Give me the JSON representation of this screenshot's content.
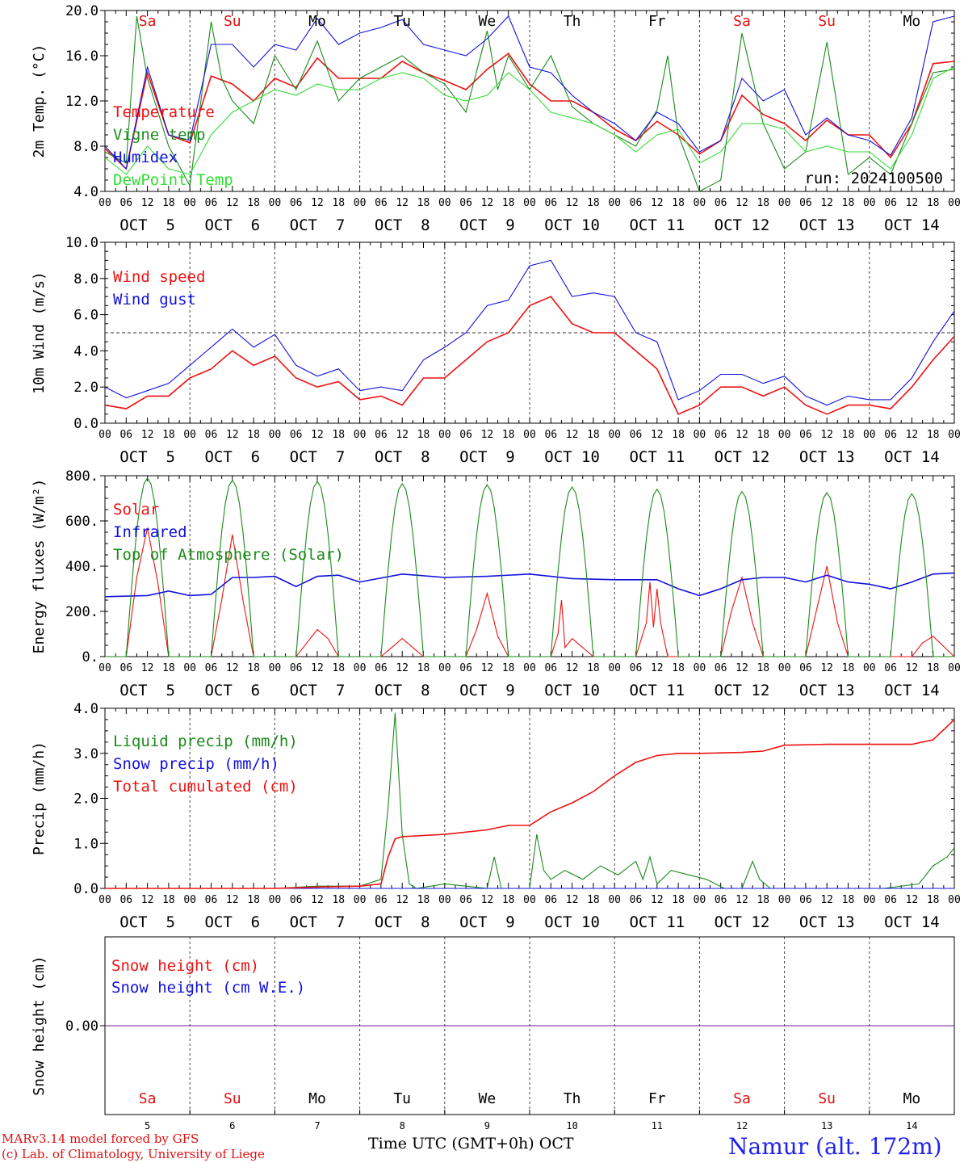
{
  "day_names": [
    "Sa",
    "Su",
    "Mo",
    "Tu",
    "We",
    "Th",
    "Fr",
    "Sa",
    "Su",
    "Mo"
  ],
  "weekend_color": "#e01010",
  "weekday_color": "#000000",
  "hour_ticks": [
    "00",
    "06",
    "12",
    "18"
  ],
  "end_tick": "00",
  "date_labels": [
    "OCT  5",
    "OCT  6",
    "OCT  7",
    "OCT  8",
    "OCT  9",
    "OCT 10",
    "OCT 11",
    "OCT 12",
    "OCT 13",
    "OCT 14"
  ],
  "day_numbers": [
    "5",
    "6",
    "7",
    "8",
    "9",
    "10",
    "11",
    "12",
    "13",
    "14"
  ],
  "run_label": "run: 2024100500",
  "footer": {
    "model_line": "MARv3.14 model forced by GFS",
    "copyright_line": "(c) Lab. of Climatology, University of Liege",
    "axis_title": "Time UTC (GMT+0h)",
    "axis_month": "OCT",
    "station": "Namur (alt. 172m)"
  },
  "chart_data": [
    {
      "type": "line",
      "ylabel": "2m Temp. (°C)",
      "ylim": [
        4,
        20
      ],
      "yticks": [
        "4.0",
        "8.0",
        "12.0",
        "16.0",
        "20.0"
      ],
      "x_unit": "hours since Oct 5 00 UTC",
      "series": [
        {
          "name": "Temperature",
          "color": "#ee1111",
          "x": [
            0,
            6,
            12,
            18,
            24,
            30,
            36,
            42,
            48,
            54,
            60,
            66,
            72,
            78,
            84,
            90,
            96,
            102,
            108,
            114,
            120,
            126,
            132,
            138,
            144,
            150,
            156,
            162,
            168,
            174,
            180,
            186,
            192,
            198,
            204,
            210,
            216,
            222,
            228,
            234,
            240
          ],
          "y": [
            7.8,
            6,
            14.5,
            9,
            8.3,
            14.2,
            13.5,
            12,
            14,
            13.2,
            15.8,
            14,
            14,
            14,
            15.5,
            14.5,
            13.8,
            13,
            14.8,
            16.2,
            13.5,
            12,
            12,
            11,
            9.5,
            8.5,
            10.2,
            9,
            7.3,
            8.5,
            12.5,
            10.8,
            10,
            8.5,
            10.3,
            9,
            9,
            7,
            10,
            15.3,
            15.5
          ]
        },
        {
          "name": "Vigne temp",
          "color": "#1a8a1a",
          "x": [
            0,
            6,
            9,
            12,
            18,
            24,
            30,
            33,
            36,
            42,
            48,
            54,
            60,
            66,
            72,
            78,
            84,
            90,
            96,
            102,
            108,
            111,
            114,
            120,
            126,
            132,
            138,
            144,
            150,
            156,
            159,
            162,
            168,
            174,
            180,
            186,
            192,
            198,
            204,
            210,
            216,
            222,
            228,
            234,
            240
          ],
          "y": [
            7.5,
            6.5,
            19.5,
            14,
            8,
            4.5,
            19,
            14,
            12,
            10,
            16,
            13,
            17.3,
            12,
            14,
            15,
            16,
            14.5,
            13.5,
            11,
            18.2,
            13,
            16,
            13,
            16,
            11.5,
            10,
            9,
            8,
            11.2,
            16,
            9,
            4,
            5,
            18,
            10,
            6,
            7.5,
            17.2,
            5.5,
            7,
            5.5,
            10,
            14.5,
            14.8
          ]
        },
        {
          "name": "Humidex",
          "color": "#1111dd",
          "x": [
            0,
            6,
            12,
            18,
            24,
            30,
            36,
            42,
            48,
            54,
            60,
            66,
            72,
            78,
            84,
            90,
            96,
            102,
            108,
            114,
            120,
            126,
            132,
            138,
            144,
            150,
            156,
            162,
            168,
            174,
            180,
            186,
            192,
            198,
            204,
            210,
            216,
            222,
            228,
            234,
            240
          ],
          "y": [
            8,
            6,
            15,
            9,
            8.5,
            17,
            17,
            15,
            17,
            16.5,
            19.3,
            17,
            18,
            18.5,
            19.2,
            17,
            16.5,
            16,
            17.5,
            19.5,
            15,
            14.5,
            12.5,
            11,
            10,
            8.5,
            11,
            10,
            7.5,
            8.5,
            14,
            12,
            13,
            9,
            10.5,
            9,
            8.5,
            7.2,
            10.5,
            19,
            19.5
          ]
        },
        {
          "name": "DewPoint Temp",
          "color": "#33dd33",
          "x": [
            0,
            6,
            12,
            18,
            24,
            30,
            36,
            42,
            48,
            54,
            60,
            66,
            72,
            78,
            84,
            90,
            96,
            102,
            108,
            114,
            120,
            126,
            132,
            138,
            144,
            150,
            156,
            162,
            168,
            174,
            180,
            186,
            192,
            198,
            204,
            210,
            216,
            222,
            228,
            234,
            240
          ],
          "y": [
            7,
            5.5,
            8,
            6,
            5.5,
            9,
            11,
            12,
            13,
            12.5,
            13.5,
            13,
            13,
            14,
            14.5,
            14,
            12.5,
            12,
            12.5,
            14.5,
            13,
            11,
            10.5,
            10,
            9,
            7.5,
            9,
            9.5,
            6.5,
            7.5,
            10,
            10,
            9.5,
            7.5,
            8,
            7.5,
            7.5,
            6,
            9,
            14,
            15
          ]
        }
      ]
    },
    {
      "type": "line",
      "ylabel": "10m Wind (m/s)",
      "ylim": [
        0,
        10
      ],
      "yticks": [
        "0.0",
        "2.0",
        "4.0",
        "6.0",
        "8.0",
        "10.0"
      ],
      "reference_line": 5,
      "series": [
        {
          "name": "Wind speed",
          "color": "#ee1111",
          "x": [
            0,
            6,
            12,
            18,
            24,
            30,
            36,
            42,
            48,
            54,
            60,
            66,
            72,
            78,
            84,
            90,
            96,
            102,
            108,
            114,
            120,
            126,
            132,
            138,
            144,
            150,
            156,
            162,
            168,
            174,
            180,
            186,
            192,
            198,
            204,
            210,
            216,
            222,
            228,
            234,
            240
          ],
          "y": [
            1,
            0.8,
            1.5,
            1.5,
            2.5,
            3,
            4,
            3.2,
            3.7,
            2.5,
            2,
            2.3,
            1.3,
            1.5,
            1,
            2.5,
            2.5,
            3.5,
            4.5,
            5,
            6.5,
            7,
            5.5,
            5,
            5,
            4,
            3,
            0.5,
            1,
            2,
            2,
            1.5,
            2,
            1,
            0.5,
            1,
            1,
            0.8,
            2,
            3.5,
            4.8
          ]
        },
        {
          "name": "Wind gust",
          "color": "#1111dd",
          "x": [
            0,
            6,
            12,
            18,
            24,
            30,
            36,
            42,
            48,
            54,
            60,
            66,
            72,
            78,
            84,
            90,
            96,
            102,
            108,
            114,
            120,
            126,
            132,
            138,
            144,
            150,
            156,
            162,
            168,
            174,
            180,
            186,
            192,
            198,
            204,
            210,
            216,
            222,
            228,
            234,
            240
          ],
          "y": [
            2,
            1.4,
            1.8,
            2.2,
            3.2,
            4.2,
            5.2,
            4.2,
            4.9,
            3.2,
            2.6,
            3,
            1.8,
            2,
            1.8,
            3.5,
            4.2,
            5,
            6.5,
            6.8,
            8.7,
            9,
            7,
            7.2,
            7,
            5,
            4.5,
            1.3,
            1.8,
            2.7,
            2.7,
            2.2,
            2.6,
            1.5,
            1,
            1.5,
            1.3,
            1.3,
            2.5,
            4.5,
            6.2
          ]
        }
      ]
    },
    {
      "type": "line",
      "ylabel": "Energy fluxes (W/m²)",
      "ylim": [
        0,
        800
      ],
      "yticks": [
        "0.",
        "200.",
        "400.",
        "600.",
        "800."
      ],
      "series": [
        {
          "name": "Solar",
          "color": "#ee1111",
          "x": [
            0,
            6,
            9,
            12,
            15,
            18,
            24,
            30,
            33,
            36,
            39,
            42,
            48,
            54,
            57,
            60,
            63,
            66,
            72,
            78,
            81,
            84,
            87,
            90,
            96,
            102,
            105,
            108,
            111,
            114,
            120,
            126,
            128,
            129,
            130,
            132,
            138,
            150,
            153,
            154,
            155,
            156,
            157,
            159,
            168,
            174,
            177,
            180,
            183,
            186,
            192,
            198,
            201,
            204,
            207,
            210,
            216,
            222,
            228,
            231,
            234,
            240
          ],
          "y": [
            0,
            0,
            350,
            570,
            320,
            0,
            0,
            0,
            250,
            540,
            250,
            0,
            0,
            0,
            60,
            120,
            80,
            0,
            0,
            0,
            40,
            80,
            40,
            0,
            0,
            0,
            120,
            280,
            90,
            0,
            0,
            0,
            100,
            250,
            40,
            80,
            0,
            0,
            150,
            330,
            130,
            300,
            150,
            0,
            0,
            0,
            200,
            350,
            150,
            0,
            0,
            0,
            200,
            400,
            150,
            0,
            0,
            0,
            0,
            60,
            90,
            0
          ]
        },
        {
          "name": "Infrared",
          "color": "#1111dd",
          "x": [
            0,
            12,
            18,
            24,
            30,
            36,
            42,
            48,
            54,
            60,
            66,
            72,
            84,
            96,
            108,
            120,
            132,
            144,
            156,
            162,
            168,
            174,
            180,
            186,
            192,
            198,
            204,
            210,
            216,
            222,
            228,
            234,
            240
          ],
          "y": [
            265,
            270,
            290,
            270,
            275,
            350,
            350,
            355,
            310,
            355,
            360,
            330,
            365,
            350,
            355,
            365,
            345,
            340,
            340,
            300,
            270,
            300,
            340,
            350,
            350,
            330,
            360,
            330,
            320,
            300,
            330,
            365,
            370
          ]
        },
        {
          "name": "Top of Atmosphere (Solar)",
          "color": "#1a8a1a",
          "peaks": [
            790,
            780,
            775,
            765,
            760,
            750,
            740,
            730,
            725,
            720
          ]
        }
      ]
    },
    {
      "type": "line",
      "ylabel": "Precip (mm/h)",
      "ylim": [
        0,
        4
      ],
      "yticks": [
        "0.0",
        "1.0",
        "2.0",
        "3.0",
        "4.0"
      ],
      "series": [
        {
          "name": "Liquid precip (mm/h)",
          "color": "#1a8a1a",
          "x": [
            0,
            48,
            60,
            66,
            72,
            78,
            80,
            82,
            84,
            86,
            88,
            96,
            108,
            110,
            112,
            120,
            122,
            124,
            126,
            130,
            135,
            140,
            145,
            150,
            152,
            154,
            156,
            160,
            165,
            170,
            175,
            180,
            183,
            185,
            188,
            200,
            210,
            220,
            230,
            234,
            238,
            240
          ],
          "y": [
            0,
            0,
            0.05,
            0.05,
            0.05,
            0.2,
            1.8,
            3.9,
            1.2,
            0.1,
            0,
            0.1,
            0,
            0.7,
            0,
            0,
            1.2,
            0.4,
            0.2,
            0.4,
            0.2,
            0.5,
            0.3,
            0.6,
            0.2,
            0.7,
            0.1,
            0.4,
            0.3,
            0.2,
            0,
            0,
            0.6,
            0.2,
            0,
            0,
            0,
            0,
            0.1,
            0.5,
            0.7,
            0.9
          ]
        },
        {
          "name": "Snow precip (mm/h)",
          "color": "#1111dd",
          "x": [
            0,
            240
          ],
          "y": [
            0,
            0
          ]
        },
        {
          "name": "Total cumulated (cm)",
          "color": "#ee1111",
          "x": [
            0,
            48,
            60,
            72,
            78,
            80,
            82,
            84,
            96,
            108,
            114,
            120,
            126,
            132,
            138,
            144,
            150,
            156,
            162,
            168,
            180,
            186,
            192,
            204,
            216,
            228,
            234,
            240
          ],
          "y": [
            0,
            0,
            0.03,
            0.05,
            0.1,
            0.7,
            1.1,
            1.15,
            1.2,
            1.3,
            1.4,
            1.4,
            1.7,
            1.9,
            2.15,
            2.5,
            2.8,
            2.95,
            3,
            3,
            3.02,
            3.05,
            3.18,
            3.2,
            3.2,
            3.2,
            3.3,
            3.75
          ]
        }
      ]
    },
    {
      "type": "line",
      "ylabel": "Snow height (cm)",
      "ylim": [
        -1,
        1
      ],
      "yticks": [
        "0.00"
      ],
      "series": [
        {
          "name": "Snow height (cm)",
          "color": "#ee1111",
          "x": [
            0,
            240
          ],
          "y": [
            0,
            0
          ]
        },
        {
          "name": "Snow height (cm W.E.)",
          "color": "#1111dd",
          "x": [
            0,
            240
          ],
          "y": [
            0,
            0
          ]
        }
      ],
      "overlap_color": "#7a1a9a"
    }
  ]
}
